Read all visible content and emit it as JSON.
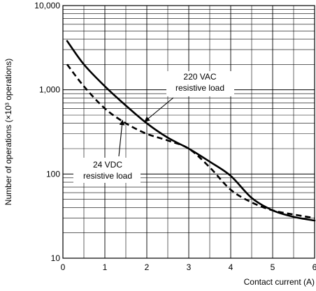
{
  "chart_data": {
    "type": "line",
    "title": "",
    "xlabel": "Contact current (A)",
    "ylabel": "Number of operations (×10³ operations)",
    "xlim": [
      0,
      6
    ],
    "ylim": [
      10,
      10000
    ],
    "y_scale": "log",
    "grid": true,
    "x_ticks": [
      "0",
      "1",
      "2",
      "3",
      "4",
      "5",
      "6"
    ],
    "y_ticks": [
      "10",
      "100",
      "1,000",
      "10,000"
    ],
    "series": [
      {
        "name": "220 VAC resistive load",
        "line_style": "solid",
        "color": "#000000",
        "x": [
          0.1,
          0.5,
          1.0,
          1.5,
          2.0,
          2.5,
          3.0,
          3.5,
          4.0,
          4.5,
          5.0,
          5.5,
          6.0
        ],
        "y": [
          3800,
          2000,
          1100,
          650,
          400,
          270,
          200,
          140,
          95,
          52,
          37,
          31,
          28
        ]
      },
      {
        "name": "24 VDC resistive load",
        "line_style": "dashed",
        "color": "#000000",
        "x": [
          0.1,
          0.5,
          1.0,
          1.5,
          2.0,
          2.5,
          3.0,
          3.5,
          4.0,
          4.5,
          5.0,
          5.5,
          6.0
        ],
        "y": [
          2000,
          1100,
          600,
          400,
          300,
          250,
          200,
          120,
          65,
          46,
          37,
          33,
          30
        ]
      }
    ],
    "annotations": [
      {
        "lines": [
          "220 VAC",
          "resistive load"
        ],
        "points_to": "220 VAC resistive load"
      },
      {
        "lines": [
          "24 VDC",
          "resistive load"
        ],
        "points_to": "24 VDC resistive load"
      }
    ]
  }
}
